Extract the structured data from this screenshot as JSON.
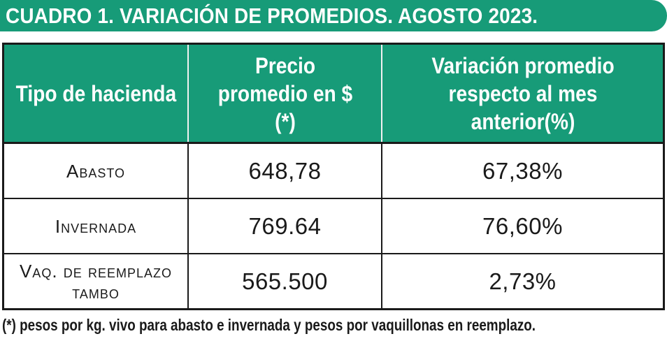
{
  "title": "CUADRO 1. VARIACIÓN DE PROMEDIOS. AGOSTO 2023.",
  "table": {
    "headers": [
      "Tipo de hacienda",
      "Precio promedio en $ (*)",
      "Variación promedio respecto al mes anterior(%)"
    ],
    "rows": [
      {
        "tipo": "Abasto",
        "precio": "648,78",
        "variacion": "67,38%"
      },
      {
        "tipo": "Invernada",
        "precio": "769.64",
        "variacion": "76,60%"
      },
      {
        "tipo": "Vaq. de reemplazo tambo",
        "precio": "565.500",
        "variacion": "2,73%"
      }
    ]
  },
  "footnote": "(*) pesos por kg. vivo para abasto e invernada y pesos por vaquillonas en reemplazo.",
  "colors": {
    "accent": "#179b78",
    "border": "#1a1a1a"
  }
}
